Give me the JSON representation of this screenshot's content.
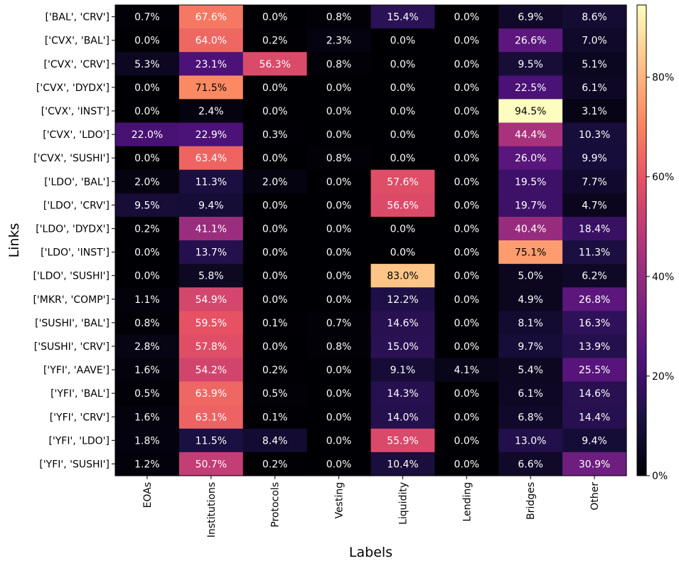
{
  "chart_data": {
    "type": "heatmap",
    "title": "",
    "xlabel": "Labels",
    "ylabel": "Links",
    "colormap": "magma",
    "value_unit": "%",
    "color_range": [
      0,
      94.5
    ],
    "grid": false,
    "colorbar": {
      "position": "right",
      "ticks": [
        0,
        20,
        40,
        60,
        80
      ],
      "tick_labels": [
        "0%",
        "20%",
        "40%",
        "60%",
        "80%"
      ]
    },
    "x_categories": [
      "EOAs",
      "Institutions",
      "Protocols",
      "Vesting",
      "Liquidity",
      "Lending",
      "Bridges",
      "Other"
    ],
    "y_categories": [
      "['BAL', 'CRV']",
      "['CVX', 'BAL']",
      "['CVX', 'CRV']",
      "['CVX', 'DYDX']",
      "['CVX', 'INST']",
      "['CVX', 'LDO']",
      "['CVX', 'SUSHI']",
      "['LDO', 'BAL']",
      "['LDO', 'CRV']",
      "['LDO', 'DYDX']",
      "['LDO', 'INST']",
      "['LDO', 'SUSHI']",
      "['MKR', 'COMP']",
      "['SUSHI', 'BAL']",
      "['SUSHI', 'CRV']",
      "['YFI', 'AAVE']",
      "['YFI', 'BAL']",
      "['YFI', 'CRV']",
      "['YFI', 'LDO']",
      "['YFI', 'SUSHI']"
    ],
    "values": [
      [
        0.7,
        67.6,
        0.0,
        0.8,
        15.4,
        0.0,
        6.9,
        8.6
      ],
      [
        0.0,
        64.0,
        0.2,
        2.3,
        0.0,
        0.0,
        26.6,
        7.0
      ],
      [
        5.3,
        23.1,
        56.3,
        0.8,
        0.0,
        0.0,
        9.5,
        5.1
      ],
      [
        0.0,
        71.5,
        0.0,
        0.0,
        0.0,
        0.0,
        22.5,
        6.1
      ],
      [
        0.0,
        2.4,
        0.0,
        0.0,
        0.0,
        0.0,
        94.5,
        3.1
      ],
      [
        22.0,
        22.9,
        0.3,
        0.0,
        0.0,
        0.0,
        44.4,
        10.3
      ],
      [
        0.0,
        63.4,
        0.0,
        0.8,
        0.0,
        0.0,
        26.0,
        9.9
      ],
      [
        2.0,
        11.3,
        2.0,
        0.0,
        57.6,
        0.0,
        19.5,
        7.7
      ],
      [
        9.5,
        9.4,
        0.0,
        0.0,
        56.6,
        0.0,
        19.7,
        4.7
      ],
      [
        0.2,
        41.1,
        0.0,
        0.0,
        0.0,
        0.0,
        40.4,
        18.4
      ],
      [
        0.0,
        13.7,
        0.0,
        0.0,
        0.0,
        0.0,
        75.1,
        11.3
      ],
      [
        0.0,
        5.8,
        0.0,
        0.0,
        83.0,
        0.0,
        5.0,
        6.2
      ],
      [
        1.1,
        54.9,
        0.0,
        0.0,
        12.2,
        0.0,
        4.9,
        26.8
      ],
      [
        0.8,
        59.5,
        0.1,
        0.7,
        14.6,
        0.0,
        8.1,
        16.3
      ],
      [
        2.8,
        57.8,
        0.0,
        0.8,
        15.0,
        0.0,
        9.7,
        13.9
      ],
      [
        1.6,
        54.2,
        0.2,
        0.0,
        9.1,
        4.1,
        5.4,
        25.5
      ],
      [
        0.5,
        63.9,
        0.5,
        0.0,
        14.3,
        0.0,
        6.1,
        14.6
      ],
      [
        1.6,
        63.1,
        0.1,
        0.0,
        14.0,
        0.0,
        6.8,
        14.4
      ],
      [
        1.8,
        11.5,
        8.4,
        0.0,
        55.9,
        0.0,
        13.0,
        9.4
      ],
      [
        1.2,
        50.7,
        0.2,
        0.0,
        10.4,
        0.0,
        6.6,
        30.9
      ]
    ]
  }
}
